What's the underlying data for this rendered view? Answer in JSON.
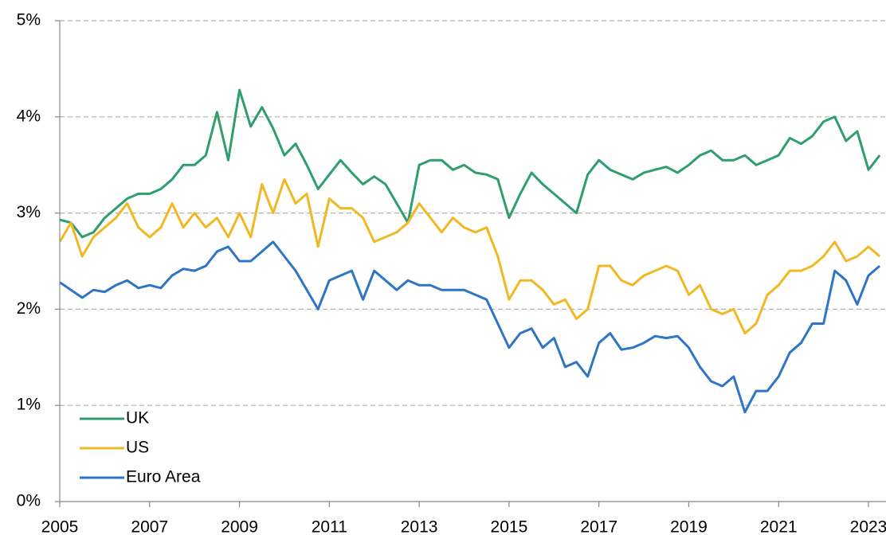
{
  "chart_data": {
    "type": "line",
    "x": [
      2005,
      2005.25,
      2005.5,
      2005.75,
      2006,
      2006.25,
      2006.5,
      2006.75,
      2007,
      2007.25,
      2007.5,
      2007.75,
      2008,
      2008.25,
      2008.5,
      2008.75,
      2009,
      2009.25,
      2009.5,
      2009.75,
      2010,
      2010.25,
      2010.5,
      2010.75,
      2011,
      2011.25,
      2011.5,
      2011.75,
      2012,
      2012.25,
      2012.5,
      2012.75,
      2013,
      2013.25,
      2013.5,
      2013.75,
      2014,
      2014.25,
      2014.5,
      2014.75,
      2015,
      2015.25,
      2015.5,
      2015.75,
      2016,
      2016.25,
      2016.5,
      2016.75,
      2017,
      2017.25,
      2017.5,
      2017.75,
      2018,
      2018.25,
      2018.5,
      2018.75,
      2019,
      2019.25,
      2019.5,
      2019.75,
      2020,
      2020.25,
      2020.5,
      2020.75,
      2021,
      2021.25,
      2021.5,
      2021.75,
      2022,
      2022.25,
      2022.5,
      2022.75,
      2023,
      2023.25
    ],
    "series": [
      {
        "name": "UK",
        "color": "#2e9e6e",
        "values": [
          2.93,
          2.9,
          2.75,
          2.8,
          2.95,
          3.05,
          3.15,
          3.2,
          3.2,
          3.25,
          3.35,
          3.5,
          3.5,
          3.6,
          4.05,
          3.55,
          4.28,
          3.9,
          4.1,
          3.88,
          3.6,
          3.72,
          3.5,
          3.25,
          3.4,
          3.55,
          3.42,
          3.3,
          3.38,
          3.3,
          3.1,
          2.9,
          3.5,
          3.55,
          3.55,
          3.45,
          3.5,
          3.42,
          3.4,
          3.35,
          2.95,
          3.2,
          3.42,
          3.3,
          3.2,
          3.1,
          3.0,
          3.4,
          3.55,
          3.45,
          3.4,
          3.35,
          3.42,
          3.45,
          3.48,
          3.42,
          3.5,
          3.6,
          3.65,
          3.55,
          3.55,
          3.6,
          3.5,
          3.55,
          3.6,
          3.78,
          3.72,
          3.8,
          3.95,
          4.0,
          3.75,
          3.85,
          3.45,
          3.6
        ]
      },
      {
        "name": "US",
        "color": "#f2b824",
        "values": [
          2.7,
          2.9,
          2.55,
          2.75,
          2.85,
          2.95,
          3.1,
          2.85,
          2.75,
          2.85,
          3.1,
          2.85,
          3.0,
          2.85,
          2.95,
          2.75,
          3.0,
          2.75,
          3.3,
          3.0,
          3.35,
          3.1,
          3.2,
          2.65,
          3.15,
          3.05,
          3.05,
          2.95,
          2.7,
          2.75,
          2.8,
          2.9,
          3.1,
          2.95,
          2.8,
          2.95,
          2.85,
          2.8,
          2.85,
          2.55,
          2.1,
          2.3,
          2.3,
          2.2,
          2.05,
          2.1,
          1.9,
          2.0,
          2.45,
          2.45,
          2.3,
          2.25,
          2.35,
          2.4,
          2.45,
          2.4,
          2.15,
          2.25,
          2.0,
          1.95,
          2.0,
          1.75,
          1.85,
          2.15,
          2.25,
          2.4,
          2.4,
          2.45,
          2.55,
          2.7,
          2.5,
          2.55,
          2.65,
          2.55
        ]
      },
      {
        "name": "Euro Area",
        "color": "#2e75c5",
        "values": [
          2.28,
          2.2,
          2.12,
          2.2,
          2.18,
          2.25,
          2.3,
          2.22,
          2.25,
          2.22,
          2.35,
          2.42,
          2.4,
          2.45,
          2.6,
          2.65,
          2.5,
          2.5,
          2.6,
          2.7,
          2.55,
          2.4,
          2.2,
          2.0,
          2.3,
          2.35,
          2.4,
          2.1,
          2.4,
          2.3,
          2.2,
          2.3,
          2.25,
          2.25,
          2.2,
          2.2,
          2.2,
          2.15,
          2.1,
          1.85,
          1.6,
          1.75,
          1.8,
          1.6,
          1.7,
          1.4,
          1.45,
          1.3,
          1.65,
          1.75,
          1.58,
          1.6,
          1.65,
          1.72,
          1.7,
          1.72,
          1.6,
          1.4,
          1.25,
          1.2,
          1.3,
          0.93,
          1.15,
          1.15,
          1.3,
          1.55,
          1.65,
          1.85,
          1.85,
          2.4,
          2.3,
          2.05,
          2.35,
          2.45
        ]
      }
    ],
    "xlim": [
      2005,
      2023.39
    ],
    "xticks": [
      2005,
      2007,
      2009,
      2011,
      2013,
      2015,
      2017,
      2019,
      2021,
      2023
    ],
    "ylim": [
      0,
      5
    ],
    "yticks": [
      {
        "value": 0,
        "label": "0%"
      },
      {
        "value": 1,
        "label": "1%"
      },
      {
        "value": 2,
        "label": "2%"
      },
      {
        "value": 3,
        "label": "3%"
      },
      {
        "value": 4,
        "label": "4%"
      },
      {
        "value": 5,
        "label": "5%"
      }
    ],
    "grid": true,
    "legend": "lower left"
  }
}
